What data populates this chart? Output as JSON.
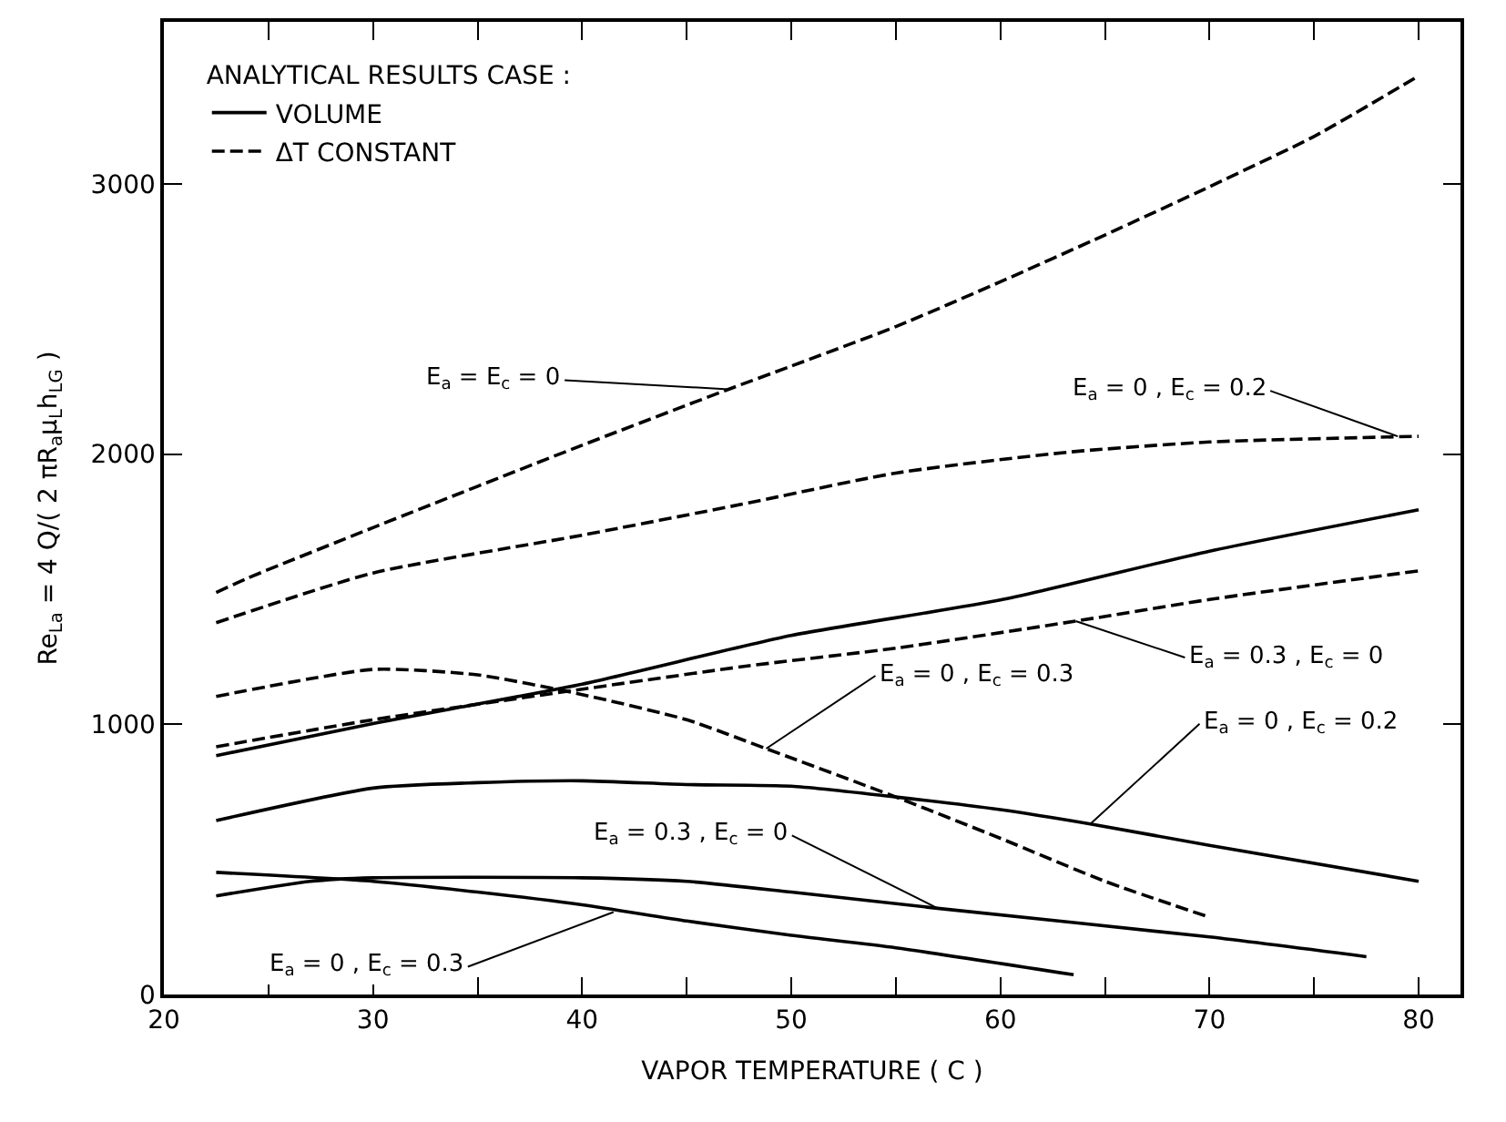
{
  "chart_data": {
    "type": "line",
    "xlabel": "VAPOR TEMPERATURE ( C )",
    "ylabel": "Re$_{La}$ = 4 Q/( 2 πR$_{a}$μ$_{L}$h$_{LG}$ )",
    "legend_title": "ANALYTICAL RESULTS CASE :",
    "legend": "top left",
    "grid": false,
    "marker": "none",
    "xlim": [
      20,
      82
    ],
    "ylim": [
      0,
      3600
    ],
    "xticks": [
      20,
      {
        "value": 25,
        "label": null
      },
      30,
      {
        "value": 35,
        "label": null
      },
      40,
      {
        "value": 45,
        "label": null
      },
      50,
      {
        "value": 55,
        "label": null
      },
      60,
      {
        "value": 65,
        "label": null
      },
      70,
      {
        "value": 75,
        "label": null
      },
      80
    ],
    "yticks": [
      0,
      1000,
      2000,
      3000
    ],
    "series": [
      {
        "name": "VOLUME",
        "color": "#000000",
        "line_style": "solid",
        "x": [
          22.5,
          30,
          40,
          50,
          60,
          70,
          80
        ],
        "values": [
          884,
          1003,
          1149,
          1329,
          1460,
          1641,
          1794
        ]
      },
      {
        "color": "#000000",
        "line_style": "solid",
        "x": [
          22.5,
          30,
          35,
          40,
          45,
          50,
          55,
          60,
          64.3,
          70,
          80
        ],
        "values": [
          644,
          764,
          784,
          791,
          777,
          771,
          731,
          684,
          631,
          552,
          419
        ]
      },
      {
        "color": "#000000",
        "line_style": "solid",
        "x": [
          22.5,
          27,
          30,
          40,
          45,
          50,
          57,
          70,
          77.5
        ],
        "values": [
          365,
          419,
          432,
          432,
          419,
          379,
          319,
          213,
          140
        ]
      },
      {
        "color": "#000000",
        "line_style": "solid",
        "x": [
          22.5,
          30,
          35,
          40,
          45,
          50,
          55,
          63.5
        ],
        "values": [
          452,
          419,
          379,
          332,
          272,
          219,
          173,
          73
        ]
      },
      {
        "name": "ΔT CONSTANT",
        "color": "#000000",
        "line_style": "dashed",
        "x": [
          22.5,
          24,
          30,
          40,
          47,
          50,
          55,
          60,
          65,
          70,
          75,
          80
        ],
        "values": [
          1488,
          1541,
          1728,
          2033,
          2240,
          2326,
          2472,
          2638,
          2811,
          2990,
          3176,
          3400
        ]
      },
      {
        "color": "#000000",
        "line_style": "dashed",
        "x": [
          22.5,
          30,
          40,
          47.6,
          55,
          63.2,
          70,
          80
        ],
        "values": [
          1376,
          1560,
          1700,
          1814,
          1930,
          2007,
          2045,
          2066
        ]
      },
      {
        "color": "#000000",
        "line_style": "dashed",
        "x": [
          22.5,
          30,
          40,
          47.9,
          55,
          63.6,
          70,
          80
        ],
        "values": [
          917,
          1017,
          1130,
          1216,
          1282,
          1382,
          1462,
          1568
        ]
      },
      {
        "color": "#000000",
        "line_style": "dashed",
        "x": [
          22.5,
          30,
          35,
          40,
          45,
          48.8,
          55,
          60,
          65,
          70
        ],
        "values": [
          1103,
          1203,
          1183,
          1110,
          1017,
          910,
          731,
          578,
          419,
          286
        ]
      }
    ],
    "annotations": [
      {
        "text": "E$_{a}$ = E$_{c}$ = 0",
        "x": 47,
        "y": 2240
      },
      {
        "text": "E$_{a}$ = 0 , E$_{c}$ = 0.2",
        "x": 79,
        "y": 2066
      },
      {
        "text": "E$_{a}$ = 0.3 , E$_{c}$ = 0",
        "x": 63.6,
        "y": 1382
      },
      {
        "text": "E$_{a}$ = 0 , E$_{c}$ = 0.3",
        "x": 48.8,
        "y": 910
      },
      {
        "text": "E$_{a}$ = 0 , E$_{c}$ = 0.2",
        "x": 64.3,
        "y": 631
      },
      {
        "text": "E$_{a}$ = 0.3 , E$_{c}$ = 0",
        "x": 57,
        "y": 319
      },
      {
        "text": "E$_{a}$ = 0 , E$_{c}$ = 0.3",
        "x": 41.5,
        "y": 305
      }
    ]
  }
}
